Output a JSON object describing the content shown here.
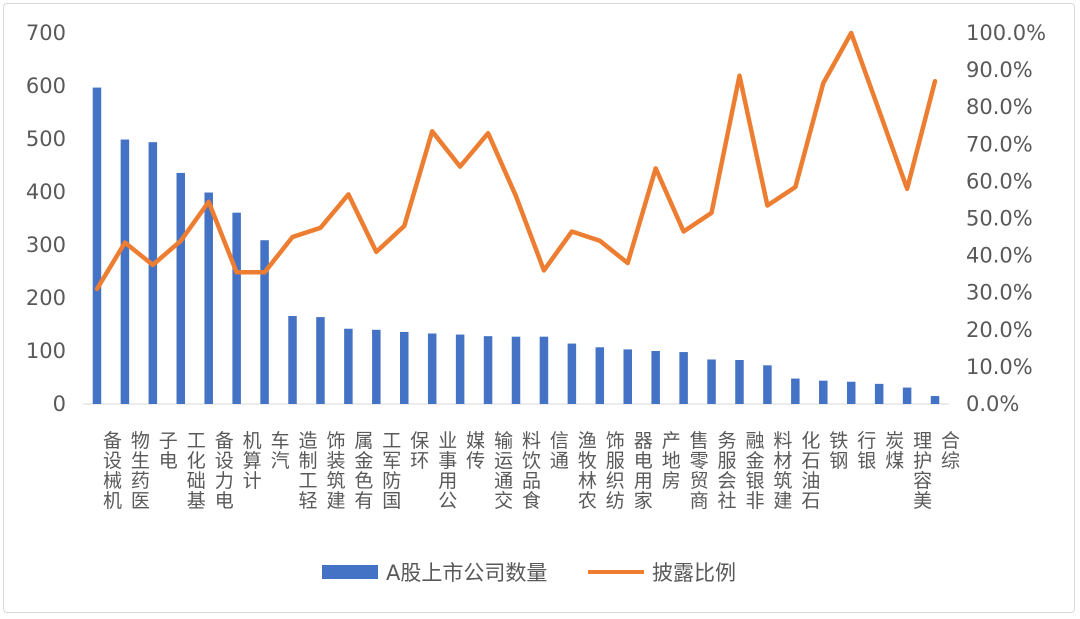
{
  "chart_data": {
    "type": "bar+line",
    "categories": [
      "机械设备",
      "医药生物",
      "电子",
      "基础化工",
      "电力设备",
      "计算机",
      "汽车",
      "轻工制造",
      "建筑装饰",
      "有色金属",
      "国防军工",
      "环保",
      "公用事业",
      "传媒",
      "交通运输",
      "食品饮料",
      "通信",
      "农林牧渔",
      "纺织服饰",
      "家用电器",
      "房地产",
      "商贸零售",
      "社会服务",
      "非银金融",
      "建筑材料",
      "石油石化",
      "钢铁",
      "银行",
      "煤炭",
      "美容护理",
      "综合"
    ],
    "series": [
      {
        "name": "A股上市公司数量",
        "type": "bar",
        "axis": "left",
        "color": "#4472C4",
        "values": [
          597,
          499,
          494,
          436,
          399,
          361,
          309,
          166,
          164,
          142,
          140,
          136,
          133,
          131,
          128,
          127,
          127,
          114,
          107,
          103,
          100,
          98,
          84,
          83,
          73,
          48,
          44,
          42,
          38,
          31,
          15
        ]
      },
      {
        "name": "披露比例",
        "type": "line",
        "axis": "right",
        "color": "#ED7D31",
        "values": [
          31.0,
          43.5,
          37.5,
          44.0,
          54.5,
          35.5,
          35.5,
          45.0,
          47.5,
          56.5,
          41.0,
          48.0,
          73.5,
          64.0,
          73.0,
          56.0,
          36.0,
          46.5,
          44.0,
          38.0,
          63.5,
          46.5,
          51.5,
          88.5,
          53.5,
          58.5,
          86.5,
          100.0,
          79.0,
          58.0,
          87.0
        ]
      }
    ],
    "y_left": {
      "ylim": [
        0,
        700
      ],
      "ticks": [
        "0",
        "100",
        "200",
        "300",
        "400",
        "500",
        "600",
        "700"
      ]
    },
    "y_right": {
      "ylim": [
        0,
        100
      ],
      "ticks": [
        "0.0%",
        "10.0%",
        "20.0%",
        "30.0%",
        "40.0%",
        "50.0%",
        "60.0%",
        "70.0%",
        "80.0%",
        "90.0%",
        "100.0%"
      ]
    },
    "grid": false,
    "legend": "bottom"
  }
}
